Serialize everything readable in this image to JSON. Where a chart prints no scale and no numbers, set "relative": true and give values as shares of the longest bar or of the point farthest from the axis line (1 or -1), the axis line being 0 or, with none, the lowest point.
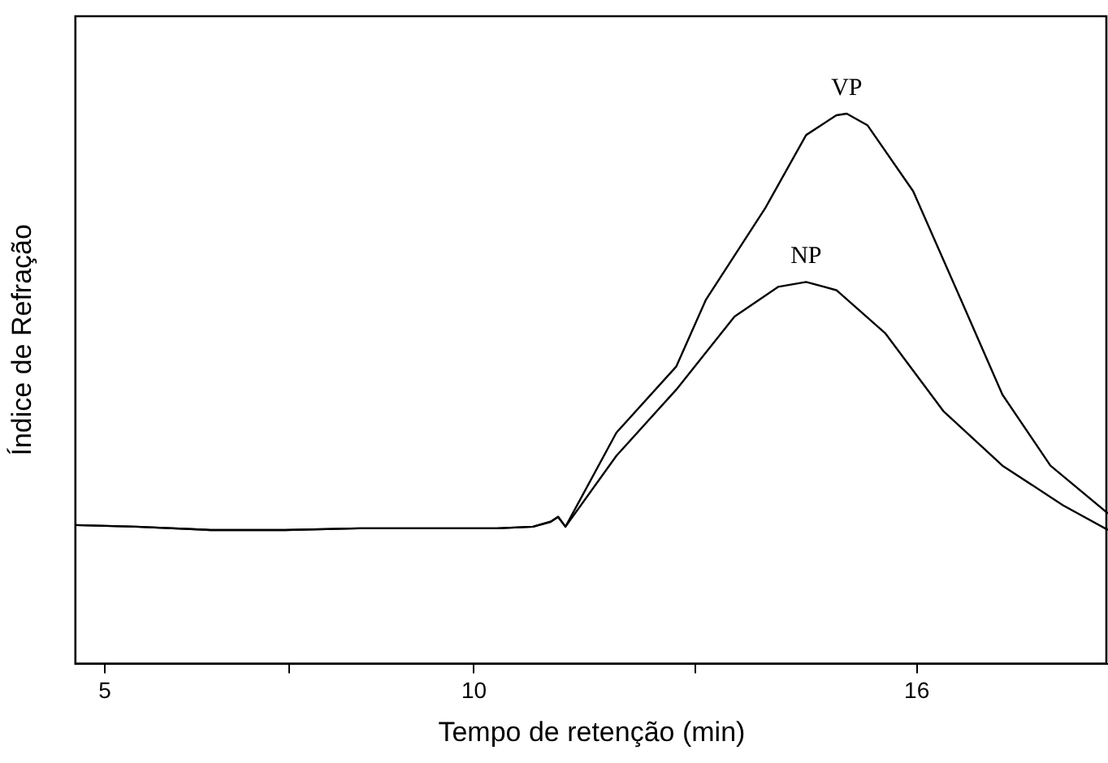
{
  "chart_data": {
    "type": "line",
    "xlabel": "Tempo de retenção (min)",
    "ylabel": "Índice de Refração",
    "relative": true,
    "xlim": [
      4.6,
      18.59
    ],
    "xticks": [
      5,
      {
        "value": 7.5,
        "label": null
      },
      10,
      {
        "value": 13,
        "label": null
      },
      16
    ],
    "grid": false,
    "legend": false,
    "marker": "none",
    "line_style": "solid",
    "series": [
      {
        "name": "VP",
        "color": "#000000",
        "x": [
          4.6,
          5.42,
          6.43,
          7.44,
          8.45,
          9.46,
          10.31,
          10.8,
          11.04,
          11.14,
          11.24,
          11.93,
          12.74,
          13.14,
          13.95,
          14.5,
          14.91,
          15.05,
          15.33,
          15.95,
          16.6,
          17.16,
          17.81,
          18.59
        ],
        "values": [
          0.252,
          0.249,
          0.243,
          0.243,
          0.246,
          0.246,
          0.246,
          0.249,
          0.258,
          0.267,
          0.249,
          0.42,
          0.54,
          0.661,
          0.829,
          0.961,
          0.997,
          1.0,
          0.979,
          0.859,
          0.661,
          0.489,
          0.36,
          0.273
        ]
      },
      {
        "name": "NP",
        "color": "#000000",
        "x": [
          4.6,
          5.42,
          6.43,
          7.44,
          8.45,
          9.46,
          10.31,
          10.8,
          11.04,
          11.14,
          11.24,
          11.93,
          12.74,
          13.53,
          14.12,
          14.5,
          14.91,
          15.57,
          16.36,
          17.16,
          17.98,
          18.59
        ],
        "values": [
          0.252,
          0.249,
          0.243,
          0.243,
          0.246,
          0.246,
          0.246,
          0.249,
          0.258,
          0.267,
          0.249,
          0.378,
          0.498,
          0.631,
          0.685,
          0.694,
          0.679,
          0.601,
          0.459,
          0.36,
          0.288,
          0.243
        ]
      }
    ]
  }
}
